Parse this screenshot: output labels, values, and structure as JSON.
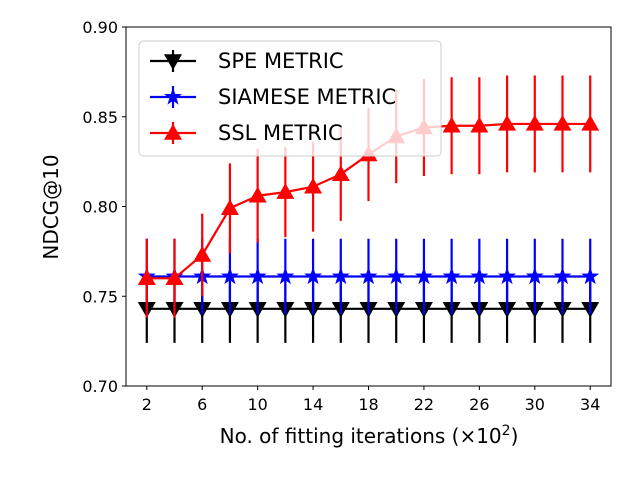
{
  "chart_data": {
    "type": "line",
    "xlabel": "No. of fitting iterations (×10",
    "xlabel_exponent": "2",
    "xlabel_close": ")",
    "ylabel": "NDCG@10",
    "ylim": [
      0.7,
      0.9
    ],
    "xlim": [
      0.5,
      35.5
    ],
    "xticks": [
      2,
      6,
      10,
      14,
      18,
      22,
      26,
      30,
      34
    ],
    "yticks": [
      0.7,
      0.75,
      0.8,
      0.85,
      0.9
    ],
    "ytick_labels": [
      "0.70",
      "0.75",
      "0.80",
      "0.85",
      "0.90"
    ],
    "grid": false,
    "legend_position": "top-left",
    "x": [
      2,
      4,
      6,
      8,
      10,
      12,
      14,
      16,
      18,
      20,
      22,
      24,
      26,
      28,
      30,
      32,
      34
    ],
    "series": [
      {
        "name": "SPE METRIC",
        "color": "#000000",
        "marker": "triangle-down",
        "values": [
          0.743,
          0.743,
          0.743,
          0.743,
          0.743,
          0.743,
          0.743,
          0.743,
          0.743,
          0.743,
          0.743,
          0.743,
          0.743,
          0.743,
          0.743,
          0.743,
          0.743
        ],
        "errors": [
          0.019,
          0.019,
          0.019,
          0.019,
          0.019,
          0.019,
          0.019,
          0.019,
          0.019,
          0.019,
          0.019,
          0.019,
          0.019,
          0.019,
          0.019,
          0.019,
          0.019
        ]
      },
      {
        "name": "SIAMESE METRIC",
        "color": "#0000ff",
        "marker": "star",
        "values": [
          0.761,
          0.761,
          0.761,
          0.761,
          0.761,
          0.761,
          0.761,
          0.761,
          0.761,
          0.761,
          0.761,
          0.761,
          0.761,
          0.761,
          0.761,
          0.761,
          0.761
        ],
        "errors": [
          0.021,
          0.021,
          0.021,
          0.021,
          0.021,
          0.021,
          0.021,
          0.021,
          0.021,
          0.021,
          0.021,
          0.021,
          0.021,
          0.021,
          0.021,
          0.021,
          0.021
        ]
      },
      {
        "name": "SSL METRIC",
        "color": "#ff0000",
        "marker": "triangle-up",
        "values": [
          0.76,
          0.76,
          0.773,
          0.799,
          0.806,
          0.808,
          0.811,
          0.818,
          0.829,
          0.839,
          0.844,
          0.845,
          0.845,
          0.846,
          0.846,
          0.846,
          0.846
        ],
        "errors": [
          0.022,
          0.022,
          0.023,
          0.025,
          0.026,
          0.025,
          0.025,
          0.026,
          0.026,
          0.026,
          0.027,
          0.027,
          0.027,
          0.027,
          0.027,
          0.027,
          0.027
        ]
      }
    ]
  }
}
